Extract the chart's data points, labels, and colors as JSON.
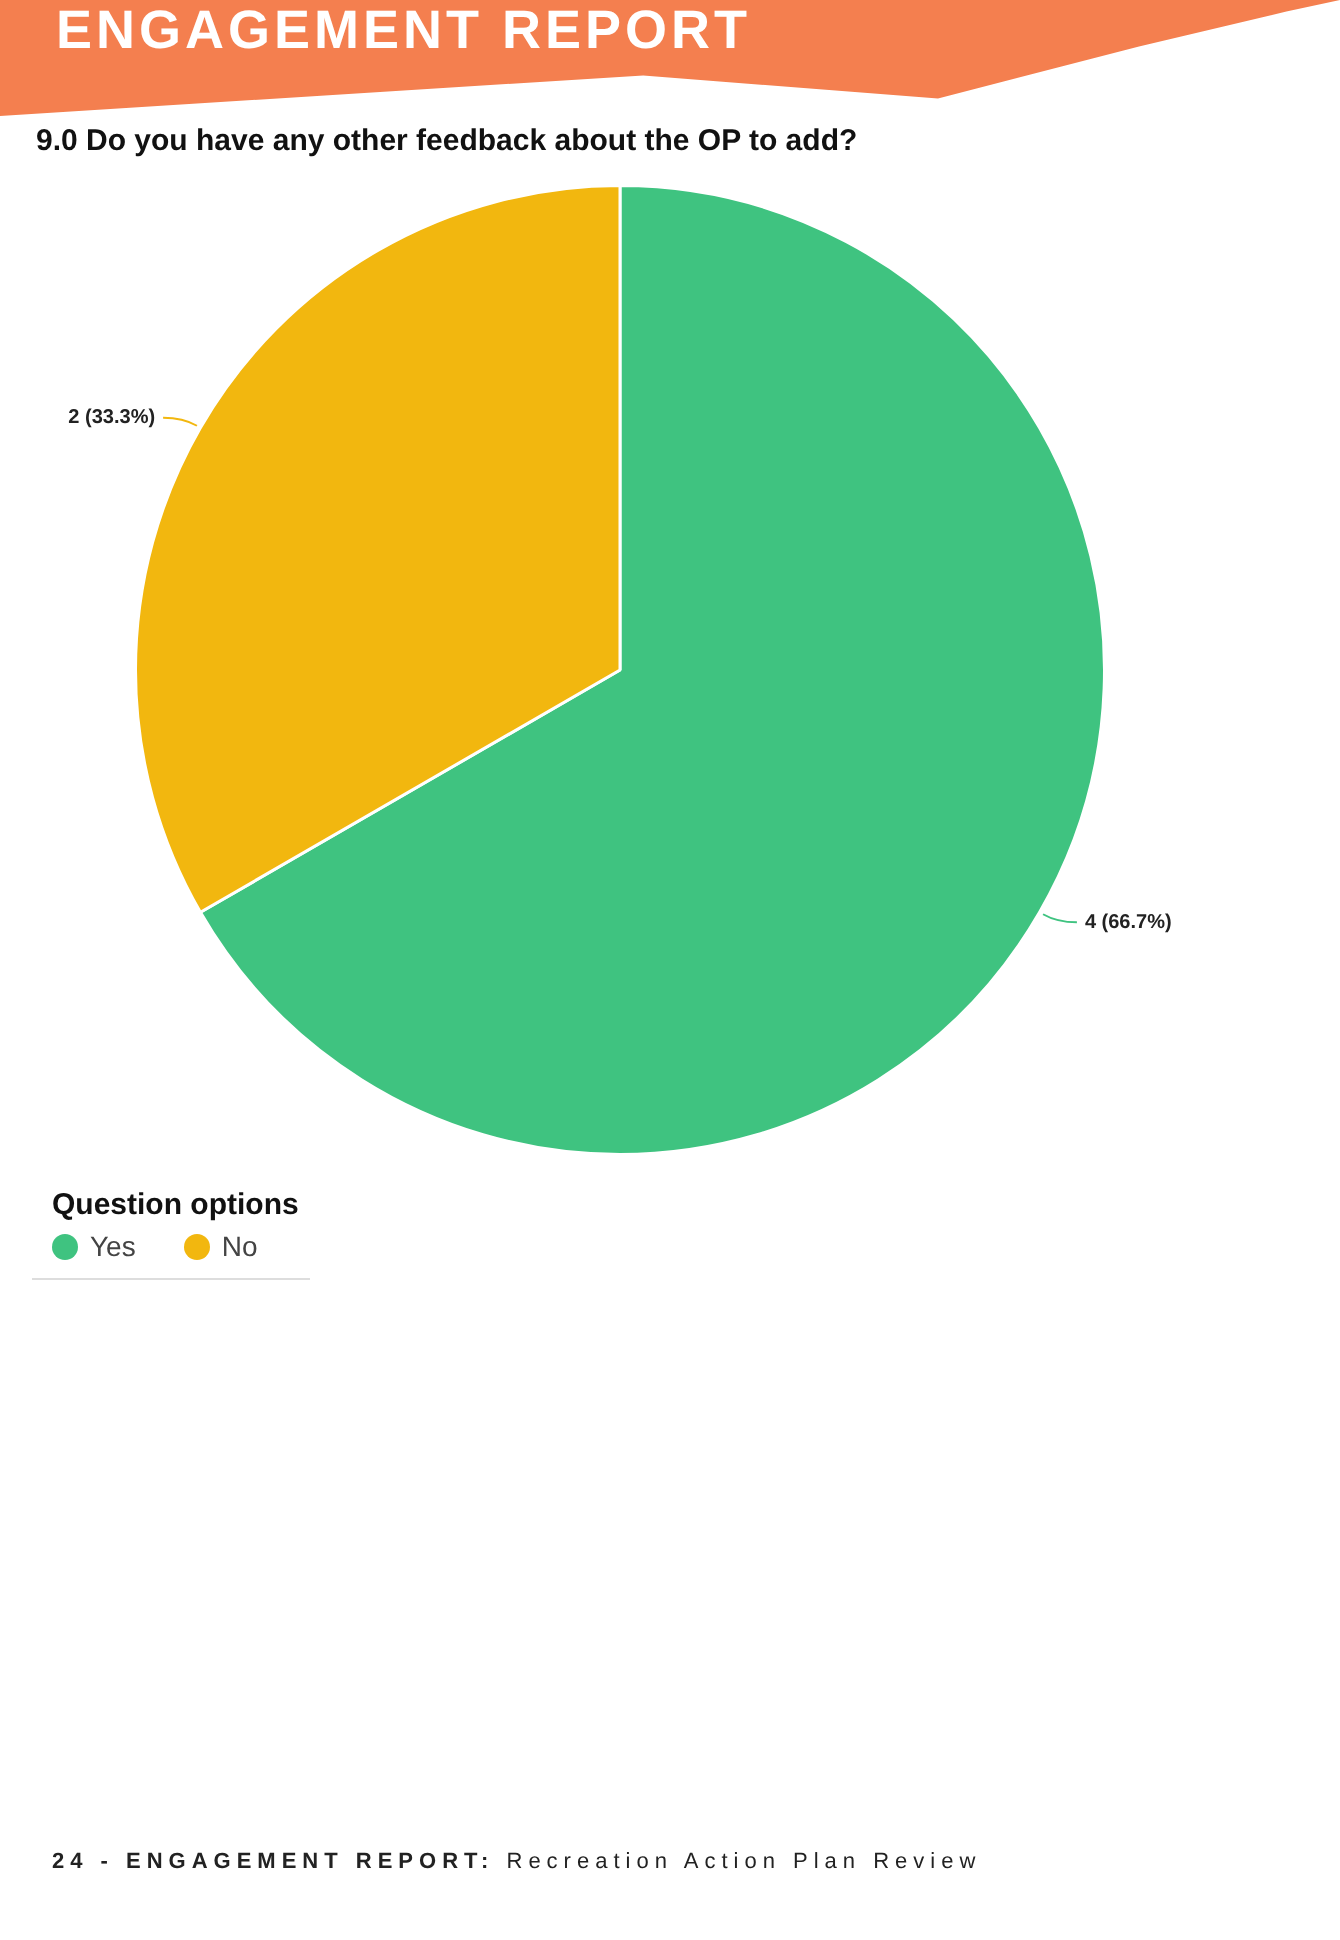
{
  "chart_data": {
    "type": "pie",
    "title": "9.0 Do you have any other feedback about the OP to add?",
    "legend_title": "Question options",
    "categories": [
      "Yes",
      "No"
    ],
    "values": [
      4,
      2
    ],
    "value_labels": [
      "4 (66.7%)",
      "2 (33.3%)"
    ],
    "colors": [
      "#3fc380",
      "#f2b70f"
    ],
    "legend": "bottom left",
    "annotations": [
      "ENGAGEMENT REPORT",
      "24 - ENGAGEMENT REPORT: Recreation Action Plan Review"
    ]
  }
}
